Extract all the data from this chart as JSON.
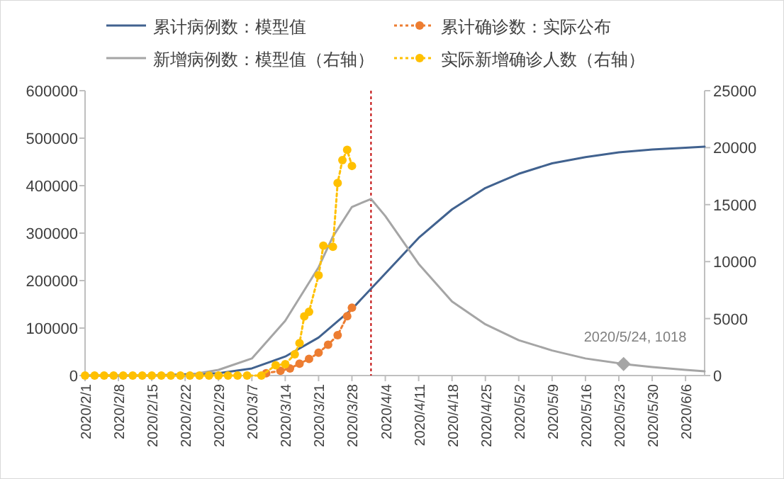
{
  "chart_data": {
    "type": "line",
    "legend": "top",
    "grid": false,
    "xlim": [
      "2020-02-01",
      "2020-06-10"
    ],
    "xticks": [
      {
        "value": "2020-02-01",
        "label": "2020/2/1"
      },
      {
        "value": "2020-02-08",
        "label": "2020/2/8"
      },
      {
        "value": "2020-02-15",
        "label": "2020/2/15"
      },
      {
        "value": "2020-02-22",
        "label": "2020/2/22"
      },
      {
        "value": "2020-02-29",
        "label": "2020/2/29"
      },
      {
        "value": "2020-03-07",
        "label": "2020/3/7"
      },
      {
        "value": "2020-03-14",
        "label": "2020/3/14"
      },
      {
        "value": "2020-03-21",
        "label": "2020/3/21"
      },
      {
        "value": "2020-03-28",
        "label": "2020/3/28"
      },
      {
        "value": "2020-04-04",
        "label": "2020/4/4"
      },
      {
        "value": "2020-04-11",
        "label": "2020/4/11"
      },
      {
        "value": "2020-04-18",
        "label": "2020/4/18"
      },
      {
        "value": "2020-04-25",
        "label": "2020/4/25"
      },
      {
        "value": "2020-05-02",
        "label": "2020/5/2"
      },
      {
        "value": "2020-05-09",
        "label": "2020/5/9"
      },
      {
        "value": "2020-05-16",
        "label": "2020/5/16"
      },
      {
        "value": "2020-05-23",
        "label": "2020/5/23"
      },
      {
        "value": "2020-05-30",
        "label": "2020/5/30"
      },
      {
        "value": "2020-06-06",
        "label": "2020/6/6"
      }
    ],
    "ylim": [
      0,
      600000
    ],
    "yticks": [
      0,
      100000,
      200000,
      300000,
      400000,
      500000,
      600000
    ],
    "y2lim": [
      0,
      25000
    ],
    "y2ticks": [
      0,
      5000,
      10000,
      15000,
      20000,
      25000
    ],
    "ref_lines": [
      {
        "axis": "x",
        "value": "2020-04-01",
        "color": "#c00000",
        "line_style": "dotted"
      }
    ],
    "annotations": [
      {
        "text": "2020/5/24, 1018",
        "x": "2020-05-24",
        "y": 1018
      }
    ],
    "series": [
      {
        "name": "累计病例数：模型值",
        "color": "#41628f",
        "line_style": "solid",
        "marker": "none",
        "x": [
          "2020-02-01",
          "2020-02-15",
          "2020-02-29",
          "2020-03-07",
          "2020-03-14",
          "2020-03-21",
          "2020-03-28",
          "2020-04-04",
          "2020-04-11",
          "2020-04-18",
          "2020-04-25",
          "2020-05-02",
          "2020-05-09",
          "2020-05-16",
          "2020-05-23",
          "2020-05-30",
          "2020-06-06",
          "2020-06-10"
        ],
        "values": [
          0,
          0,
          5000,
          15000,
          40000,
          80000,
          140000,
          215000,
          290000,
          350000,
          395000,
          425000,
          447000,
          460000,
          470000,
          476000,
          480000,
          482000
        ]
      },
      {
        "name": "累计确诊数：实际公布",
        "color": "#ed7d31",
        "line_style": "dotted",
        "marker": "circle",
        "x": [
          "2020-03-10",
          "2020-03-13",
          "2020-03-15",
          "2020-03-17",
          "2020-03-19",
          "2020-03-21",
          "2020-03-23",
          "2020-03-25",
          "2020-03-27",
          "2020-03-28"
        ],
        "values": [
          5000,
          10000,
          15000,
          25000,
          35000,
          48000,
          65000,
          85000,
          125000,
          143000
        ]
      },
      {
        "name": "新增病例数：模型值（右轴）",
        "color": "#a5a5a5",
        "axis": "y2",
        "line_style": "solid",
        "marker": "none",
        "x": [
          "2020-02-01",
          "2020-02-15",
          "2020-02-22",
          "2020-02-29",
          "2020-03-07",
          "2020-03-14",
          "2020-03-21",
          "2020-03-24",
          "2020-03-28",
          "2020-04-01",
          "2020-04-04",
          "2020-04-11",
          "2020-04-18",
          "2020-04-25",
          "2020-05-02",
          "2020-05-09",
          "2020-05-16",
          "2020-05-24",
          "2020-05-30",
          "2020-06-06",
          "2020-06-10"
        ],
        "values": [
          0,
          0,
          0,
          500,
          1500,
          4800,
          9500,
          12200,
          14800,
          15500,
          14000,
          9800,
          6500,
          4500,
          3100,
          2200,
          1500,
          1018,
          750,
          500,
          370
        ]
      },
      {
        "name": "实际新增确诊人数（右轴）",
        "color": "#ffc000",
        "axis": "y2",
        "line_style": "dotted",
        "marker": "circle",
        "x": [
          "2020-02-01",
          "2020-02-03",
          "2020-02-05",
          "2020-02-07",
          "2020-02-09",
          "2020-02-11",
          "2020-02-13",
          "2020-02-15",
          "2020-02-17",
          "2020-02-19",
          "2020-02-21",
          "2020-02-23",
          "2020-02-25",
          "2020-02-27",
          "2020-02-29",
          "2020-03-02",
          "2020-03-04",
          "2020-03-06",
          "2020-03-09",
          "2020-03-12",
          "2020-03-14",
          "2020-03-16",
          "2020-03-17",
          "2020-03-18",
          "2020-03-19",
          "2020-03-21",
          "2020-03-22",
          "2020-03-24",
          "2020-03-25",
          "2020-03-26",
          "2020-03-27",
          "2020-03-28"
        ],
        "values": [
          0,
          0,
          0,
          0,
          0,
          0,
          0,
          0,
          0,
          0,
          0,
          0,
          0,
          0,
          0,
          0,
          0,
          0,
          0,
          900,
          1000,
          1870,
          2850,
          5200,
          5600,
          8800,
          11400,
          11300,
          16900,
          18900,
          19800,
          18400
        ]
      }
    ]
  }
}
